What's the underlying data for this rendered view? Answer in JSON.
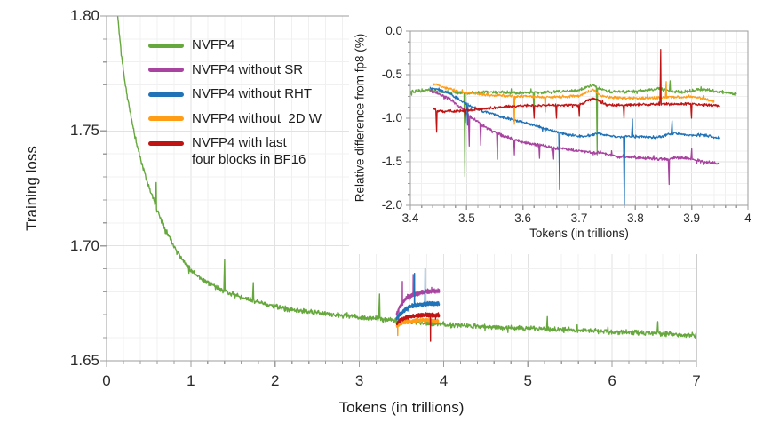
{
  "figure": {
    "bg": "#ffffff",
    "axis_color": "#9e9e9e",
    "grid_minor_color": "#f0f0f0",
    "grid_major_color": "#e2e2e2",
    "legend": {
      "items": [
        {
          "label": "NVFP4",
          "color": "#66a83d"
        },
        {
          "label": "NVFP4 without SR",
          "color": "#a843a0"
        },
        {
          "label": "NVFP4 without RHT",
          "color": "#2173b8"
        },
        {
          "label": "NVFP4 without  2D W",
          "color": "#ff9d17"
        },
        {
          "label": "NVFP4 with last",
          "label2": "four blocks in BF16",
          "color": "#c01414"
        }
      ]
    }
  },
  "chart_data": [
    {
      "id": "main",
      "type": "line",
      "title": "",
      "xlabel": "Tokens (in trillions)",
      "ylabel": "Training loss",
      "xlim": [
        0,
        7
      ],
      "ylim": [
        1.65,
        1.8
      ],
      "grid": true,
      "legend_position": "top-left-inside",
      "xticks": [
        0,
        1,
        2,
        3,
        4,
        5,
        6,
        7
      ],
      "xtick_labels": [
        "0",
        "1",
        "2",
        "3",
        "4",
        "5",
        "6",
        "7"
      ],
      "yticks": [
        1.65,
        1.7,
        1.75,
        1.8
      ],
      "ytick_labels": [
        "1.65",
        "1.70",
        "1.75",
        "1.80"
      ],
      "minor_x": 0.2,
      "minor_y": 0.01,
      "series": [
        {
          "name": "NVFP4",
          "color": "#66a83d",
          "noise": 0.0013,
          "samples": 1400,
          "seed": 11,
          "anchors": [
            [
              0.1,
              1.836
            ],
            [
              0.13,
              1.801
            ],
            [
              0.17,
              1.785
            ],
            [
              0.22,
              1.7705
            ],
            [
              0.28,
              1.758
            ],
            [
              0.35,
              1.7455
            ],
            [
              0.42,
              1.7355
            ],
            [
              0.5,
              1.726
            ],
            [
              0.6,
              1.7155
            ],
            [
              0.7,
              1.707
            ],
            [
              0.8,
              1.7
            ],
            [
              0.9,
              1.694
            ],
            [
              1.0,
              1.6895
            ],
            [
              1.15,
              1.685
            ],
            [
              1.35,
              1.681
            ],
            [
              1.6,
              1.6775
            ],
            [
              1.85,
              1.675
            ],
            [
              2.1,
              1.6728
            ],
            [
              2.4,
              1.6712
            ],
            [
              2.7,
              1.67
            ],
            [
              3.0,
              1.669
            ],
            [
              3.3,
              1.668
            ],
            [
              3.6,
              1.667
            ],
            [
              3.9,
              1.666
            ],
            [
              4.2,
              1.6653
            ],
            [
              4.6,
              1.6647
            ],
            [
              5.0,
              1.6641
            ],
            [
              5.4,
              1.6635
            ],
            [
              5.8,
              1.6629
            ],
            [
              6.2,
              1.6623
            ],
            [
              6.6,
              1.6617
            ],
            [
              7.0,
              1.6611
            ]
          ],
          "spikes": [
            [
              0.59,
              1.7275
            ],
            [
              1.4,
              1.694
            ],
            [
              1.74,
              1.684
            ],
            [
              3.24,
              1.679
            ],
            [
              5.23,
              1.6692
            ],
            [
              6.54,
              1.667
            ]
          ]
        },
        {
          "name": "NVFP4 without SR",
          "color": "#a843a0",
          "noise": 0.0011,
          "samples": 450,
          "seed": 22,
          "anchors": [
            [
              3.44,
              1.6705
            ],
            [
              3.48,
              1.6735
            ],
            [
              3.55,
              1.677
            ],
            [
              3.62,
              1.6785
            ],
            [
              3.72,
              1.6795
            ],
            [
              3.82,
              1.6803
            ],
            [
              3.95,
              1.6803
            ]
          ],
          "spikes": [
            [
              3.51,
              1.6845
            ],
            [
              3.64,
              1.6875
            ]
          ]
        },
        {
          "name": "NVFP4 without RHT",
          "color": "#2173b8",
          "noise": 0.0011,
          "samples": 450,
          "seed": 33,
          "anchors": [
            [
              3.44,
              1.6685
            ],
            [
              3.48,
              1.67
            ],
            [
              3.55,
              1.6725
            ],
            [
              3.62,
              1.6738
            ],
            [
              3.72,
              1.6745
            ],
            [
              3.82,
              1.6748
            ],
            [
              3.95,
              1.6748
            ]
          ],
          "spikes": [
            [
              3.655,
              1.688
            ],
            [
              3.78,
              1.69
            ]
          ]
        },
        {
          "name": "NVFP4 without  2D W",
          "color": "#ff9d17",
          "noise": 0.0009,
          "samples": 450,
          "seed": 44,
          "anchors": [
            [
              3.44,
              1.665
            ],
            [
              3.5,
              1.6664
            ],
            [
              3.6,
              1.6672
            ],
            [
              3.7,
              1.6676
            ],
            [
              3.8,
              1.6676
            ],
            [
              3.94,
              1.6674
            ]
          ],
          "spikes": [
            [
              3.455,
              1.661
            ]
          ]
        },
        {
          "name": "NVFP4 with last four blocks in BF16",
          "color": "#c01414",
          "noise": 0.001,
          "samples": 450,
          "seed": 55,
          "anchors": [
            [
              3.44,
              1.6662
            ],
            [
              3.5,
              1.668
            ],
            [
              3.6,
              1.6692
            ],
            [
              3.7,
              1.6697
            ],
            [
              3.8,
              1.6699
            ],
            [
              3.95,
              1.6697
            ]
          ],
          "spikes": [
            [
              3.845,
              1.6585
            ]
          ]
        }
      ]
    },
    {
      "id": "inset",
      "type": "line",
      "title": "",
      "xlabel": "Tokens (in trillions)",
      "ylabel": "Relative difference from fp8 (%)",
      "xlim": [
        3.4,
        4.0
      ],
      "ylim": [
        -2.0,
        0.0
      ],
      "grid": true,
      "xticks": [
        3.4,
        3.5,
        3.6,
        3.7,
        3.8,
        3.9,
        4.0
      ],
      "xtick_labels": [
        "3.4",
        "3.5",
        "3.6",
        "3.7",
        "3.8",
        "3.9",
        "4"
      ],
      "yticks": [
        0.0,
        -0.5,
        -1.0,
        -1.5,
        -2.0
      ],
      "ytick_labels": [
        "0.0",
        "-0.5",
        "-1.0",
        "-1.5",
        "-2.0"
      ],
      "minor_x": 0.02,
      "minor_y": 0.125,
      "series": [
        {
          "name": "NVFP4",
          "color": "#66a83d",
          "noise": 0.022,
          "samples": 760,
          "seed": 66,
          "anchors": [
            [
              3.4,
              -0.7
            ],
            [
              3.43,
              -0.67
            ],
            [
              3.46,
              -0.7
            ],
            [
              3.5,
              -0.71
            ],
            [
              3.55,
              -0.7
            ],
            [
              3.6,
              -0.71
            ],
            [
              3.65,
              -0.7
            ],
            [
              3.7,
              -0.68
            ],
            [
              3.725,
              -0.615
            ],
            [
              3.735,
              -0.66
            ],
            [
              3.76,
              -0.7
            ],
            [
              3.8,
              -0.69
            ],
            [
              3.84,
              -0.66
            ],
            [
              3.86,
              -0.68
            ],
            [
              3.88,
              -0.7
            ],
            [
              3.92,
              -0.67
            ],
            [
              3.95,
              -0.7
            ],
            [
              3.98,
              -0.72
            ]
          ],
          "spikes": [
            [
              3.497,
              -1.67
            ],
            [
              3.62,
              -0.97
            ],
            [
              3.732,
              -1.42
            ],
            [
              3.862,
              -0.57
            ]
          ]
        },
        {
          "name": "NVFP4 without SR",
          "color": "#a843a0",
          "noise": 0.022,
          "samples": 680,
          "seed": 77,
          "anchors": [
            [
              3.435,
              -0.68
            ],
            [
              3.45,
              -0.72
            ],
            [
              3.47,
              -0.78
            ],
            [
              3.49,
              -0.88
            ],
            [
              3.51,
              -1.0
            ],
            [
              3.53,
              -1.09
            ],
            [
              3.56,
              -1.19
            ],
            [
              3.59,
              -1.26
            ],
            [
              3.62,
              -1.3
            ],
            [
              3.65,
              -1.335
            ],
            [
              3.68,
              -1.36
            ],
            [
              3.71,
              -1.385
            ],
            [
              3.74,
              -1.4
            ],
            [
              3.77,
              -1.44
            ],
            [
              3.8,
              -1.455
            ],
            [
              3.83,
              -1.465
            ],
            [
              3.86,
              -1.47
            ],
            [
              3.88,
              -1.45
            ],
            [
              3.9,
              -1.47
            ],
            [
              3.92,
              -1.5
            ],
            [
              3.95,
              -1.52
            ]
          ],
          "spikes": [
            [
              3.505,
              -1.32
            ],
            [
              3.525,
              -1.31
            ],
            [
              3.555,
              -1.47
            ],
            [
              3.585,
              -1.42
            ],
            [
              3.63,
              -1.46
            ],
            [
              3.655,
              -1.47
            ],
            [
              3.86,
              -1.76
            ],
            [
              3.9,
              -1.35
            ]
          ]
        },
        {
          "name": "NVFP4 without RHT",
          "color": "#2173b8",
          "noise": 0.02,
          "samples": 680,
          "seed": 88,
          "anchors": [
            [
              3.435,
              -0.65
            ],
            [
              3.45,
              -0.67
            ],
            [
              3.47,
              -0.72
            ],
            [
              3.49,
              -0.8
            ],
            [
              3.51,
              -0.87
            ],
            [
              3.53,
              -0.92
            ],
            [
              3.56,
              -0.98
            ],
            [
              3.59,
              -1.03
            ],
            [
              3.62,
              -1.08
            ],
            [
              3.65,
              -1.14
            ],
            [
              3.68,
              -1.19
            ],
            [
              3.71,
              -1.21
            ],
            [
              3.735,
              -1.17
            ],
            [
              3.76,
              -1.21
            ],
            [
              3.8,
              -1.21
            ],
            [
              3.84,
              -1.22
            ],
            [
              3.87,
              -1.17
            ],
            [
              3.9,
              -1.2
            ],
            [
              3.92,
              -1.19
            ],
            [
              3.95,
              -1.23
            ]
          ],
          "spikes": [
            [
              3.502,
              -1.08
            ],
            [
              3.665,
              -1.82
            ],
            [
              3.78,
              -2.06
            ],
            [
              3.795,
              -1.01
            ],
            [
              3.865,
              -1.03
            ]
          ]
        },
        {
          "name": "NVFP4 without  2D W",
          "color": "#ff9d17",
          "noise": 0.018,
          "samples": 680,
          "seed": 99,
          "anchors": [
            [
              3.44,
              -0.6
            ],
            [
              3.46,
              -0.645
            ],
            [
              3.49,
              -0.7
            ],
            [
              3.52,
              -0.725
            ],
            [
              3.56,
              -0.74
            ],
            [
              3.6,
              -0.75
            ],
            [
              3.65,
              -0.76
            ],
            [
              3.7,
              -0.745
            ],
            [
              3.725,
              -0.67
            ],
            [
              3.74,
              -0.75
            ],
            [
              3.78,
              -0.77
            ],
            [
              3.82,
              -0.77
            ],
            [
              3.86,
              -0.76
            ],
            [
              3.9,
              -0.755
            ],
            [
              3.92,
              -0.77
            ],
            [
              3.94,
              -0.81
            ]
          ],
          "spikes": [
            [
              3.585,
              -1.07
            ],
            [
              3.64,
              -0.93
            ],
            [
              3.855,
              -0.58
            ]
          ]
        },
        {
          "name": "NVFP4 with last four blocks in BF16",
          "color": "#c01414",
          "noise": 0.018,
          "samples": 680,
          "seed": 111,
          "anchors": [
            [
              3.44,
              -0.89
            ],
            [
              3.45,
              -0.92
            ],
            [
              3.48,
              -0.92
            ],
            [
              3.52,
              -0.9
            ],
            [
              3.56,
              -0.87
            ],
            [
              3.6,
              -0.855
            ],
            [
              3.65,
              -0.85
            ],
            [
              3.7,
              -0.85
            ],
            [
              3.725,
              -0.77
            ],
            [
              3.75,
              -0.85
            ],
            [
              3.8,
              -0.845
            ],
            [
              3.85,
              -0.835
            ],
            [
              3.9,
              -0.835
            ],
            [
              3.95,
              -0.855
            ]
          ],
          "spikes": [
            [
              3.447,
              -1.16
            ],
            [
              3.498,
              -1.05
            ],
            [
              3.62,
              -1.0
            ],
            [
              3.66,
              -1.0
            ],
            [
              3.7,
              -0.98
            ],
            [
              3.78,
              -1.0
            ],
            [
              3.845,
              -0.21
            ],
            [
              3.9,
              -1.0
            ]
          ]
        }
      ]
    }
  ]
}
